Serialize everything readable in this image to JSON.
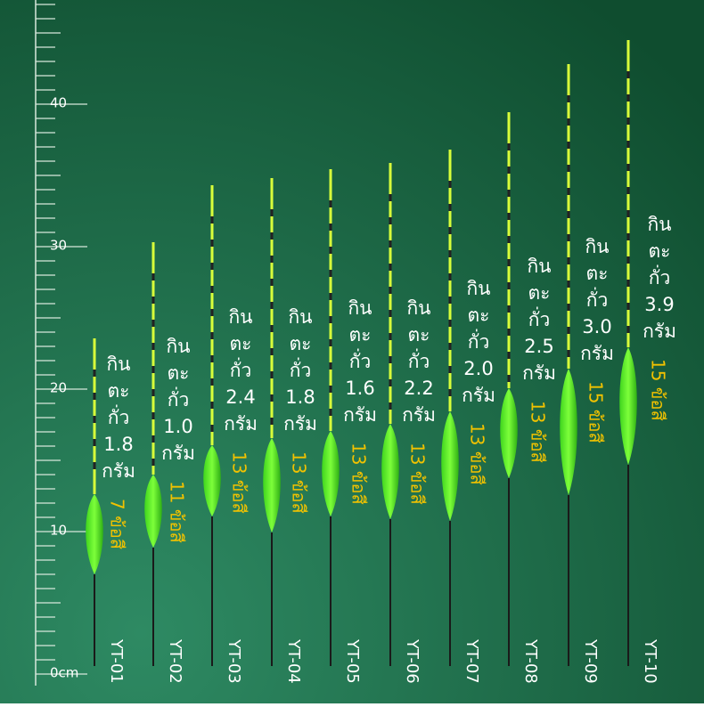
{
  "ruler": {
    "labels": [
      "0cm",
      "10",
      "20",
      "30",
      "40"
    ]
  },
  "floats": [
    {
      "model": "YT-01",
      "weight": [
        "กิน",
        "ตะ",
        "กั่ว",
        "1.8",
        "กรัม"
      ],
      "sections": "7 ข้อสี"
    },
    {
      "model": "YT-02",
      "weight": [
        "กิน",
        "ตะ",
        "กั่ว",
        "1.0",
        "กรัม"
      ],
      "sections": "11 ข้อสี"
    },
    {
      "model": "YT-03",
      "weight": [
        "กิน",
        "ตะ",
        "กั่ว",
        "2.4",
        "กรัม"
      ],
      "sections": "13 ข้อสี"
    },
    {
      "model": "YT-04",
      "weight": [
        "กิน",
        "ตะ",
        "กั่ว",
        "1.8",
        "กรัม"
      ],
      "sections": "13 ข้อสี"
    },
    {
      "model": "YT-05",
      "weight": [
        "กิน",
        "ตะ",
        "กั่ว",
        "1.6",
        "กรัม"
      ],
      "sections": "13 ข้อสี"
    },
    {
      "model": "YT-06",
      "weight": [
        "กิน",
        "ตะ",
        "กั่ว",
        "2.2",
        "กรัม"
      ],
      "sections": "13 ข้อสี"
    },
    {
      "model": "YT-07",
      "weight": [
        "กิน",
        "ตะ",
        "กั่ว",
        "2.0",
        "กรัม"
      ],
      "sections": "13 ข้อสี"
    },
    {
      "model": "YT-08",
      "weight": [
        "กิน",
        "ตะ",
        "กั่ว",
        "2.5",
        "กรัม"
      ],
      "sections": "13 ข้อสี"
    },
    {
      "model": "YT-09",
      "weight": [
        "กิน",
        "ตะ",
        "กั่ว",
        "3.0",
        "กรัม"
      ],
      "sections": "15 ข้อสี"
    },
    {
      "model": "YT-10",
      "weight": [
        "กิน",
        "ตะ",
        "กั่ว",
        "3.9",
        "กรัม"
      ],
      "sections": "15 ข้อสี"
    }
  ]
}
